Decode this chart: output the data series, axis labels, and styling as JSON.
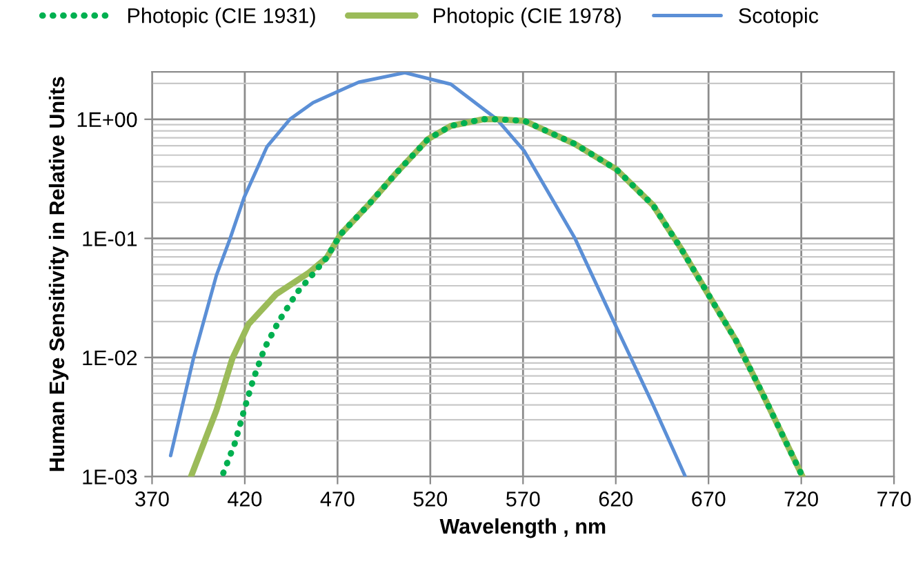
{
  "chart_data": {
    "type": "line",
    "xlabel": "Wavelength , nm",
    "ylabel": "Human Eye Sensitivity in Relative Units",
    "log": "y",
    "grid": true,
    "legend": "top",
    "xlim": [
      370,
      770
    ],
    "xticks": [
      370,
      420,
      470,
      520,
      570,
      620,
      670,
      720,
      770
    ],
    "ylim": [
      0.001,
      2.5
    ],
    "yticks": [
      {
        "value": 0.001,
        "label": "1E-03"
      },
      {
        "value": 0.01,
        "label": "1E-02"
      },
      {
        "value": 0.1,
        "label": "1E-01"
      },
      {
        "value": 1,
        "label": "1E+00"
      }
    ],
    "series": [
      {
        "name": "Photopic (CIE 1931)",
        "color": "#00b050",
        "line_style": "dotted",
        "x": [
          408.4,
          414.6,
          419.6,
          424.5,
          430.7,
          438.2,
          448.1,
          454.2,
          464.2,
          471.6,
          486.5,
          501.4,
          518.7,
          531.1,
          548.4,
          555.9,
          570.7,
          598,
          620.3,
          640.1,
          655,
          669.8,
          684.7,
          699.6,
          720.7
        ],
        "values": [
          0.00107,
          0.0019,
          0.0036,
          0.0065,
          0.012,
          0.02,
          0.035,
          0.045,
          0.069,
          0.108,
          0.19,
          0.35,
          0.68,
          0.88,
          1.0,
          1.0,
          0.97,
          0.62,
          0.38,
          0.19,
          0.083,
          0.034,
          0.014,
          0.0048,
          0.001
        ]
      },
      {
        "name": "Photopic (CIE 1978)",
        "color": "#9bbb59",
        "line_style": "solid",
        "x": [
          391,
          404.7,
          413.3,
          422,
          436.9,
          454.2,
          464.2,
          471.6,
          486.5,
          501.4,
          518.7,
          531.1,
          548.4,
          555.9,
          570.7,
          598,
          620.3,
          640.1,
          655,
          669.8,
          684.7,
          699.6,
          720.7
        ],
        "values": [
          0.001,
          0.0036,
          0.0098,
          0.019,
          0.034,
          0.051,
          0.069,
          0.108,
          0.19,
          0.35,
          0.68,
          0.88,
          1.0,
          1.0,
          0.97,
          0.62,
          0.38,
          0.19,
          0.083,
          0.034,
          0.014,
          0.0048,
          0.001
        ]
      },
      {
        "name": "Scotopic",
        "color": "#5b8fd6",
        "line_style": "solid",
        "x": [
          380,
          392.3,
          404.7,
          412.1,
          419.6,
          432,
          444.3,
          456.8,
          481.5,
          506.3,
          531.1,
          555.9,
          570.7,
          598,
          620.3,
          640.1,
          657.5
        ],
        "values": [
          0.0015,
          0.0098,
          0.049,
          0.1,
          0.22,
          0.59,
          1.0,
          1.38,
          2.05,
          2.46,
          1.97,
          1.0,
          0.54,
          0.1,
          0.018,
          0.004,
          0.001
        ]
      }
    ]
  }
}
